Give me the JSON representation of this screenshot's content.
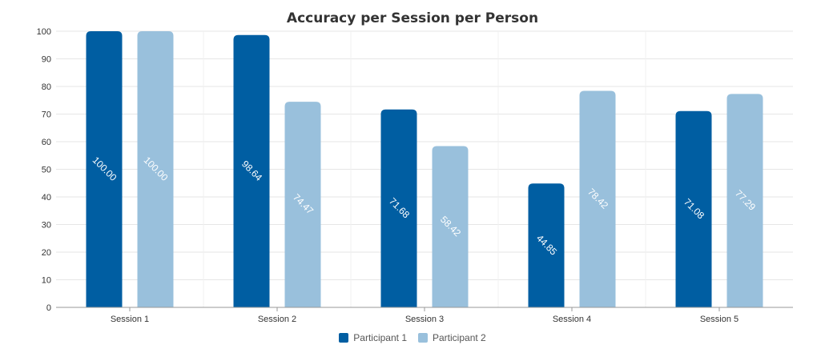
{
  "chart_data": {
    "type": "bar",
    "title": "Accuracy per Session per Person",
    "xlabel": "",
    "ylabel": "",
    "categories": [
      "Session 1",
      "Session 2",
      "Session 3",
      "Session 4",
      "Session 5"
    ],
    "series": [
      {
        "name": "Participant 1",
        "color": "#005ea2",
        "values": [
          100.0,
          98.64,
          71.68,
          44.85,
          71.08
        ]
      },
      {
        "name": "Participant 2",
        "color": "#99c0dc",
        "values": [
          100.0,
          74.47,
          58.42,
          78.42,
          77.29
        ]
      }
    ],
    "data_labels": [
      [
        "100.00",
        "98.64",
        "71.68",
        "44.85",
        "71.08"
      ],
      [
        "100.00",
        "74.47",
        "58.42",
        "78.42",
        "77.29"
      ]
    ],
    "ylim": [
      0,
      100
    ],
    "yticks": [
      0,
      10,
      20,
      30,
      40,
      50,
      60,
      70,
      80,
      90,
      100
    ],
    "grid": true,
    "legend": "bottom-center"
  }
}
